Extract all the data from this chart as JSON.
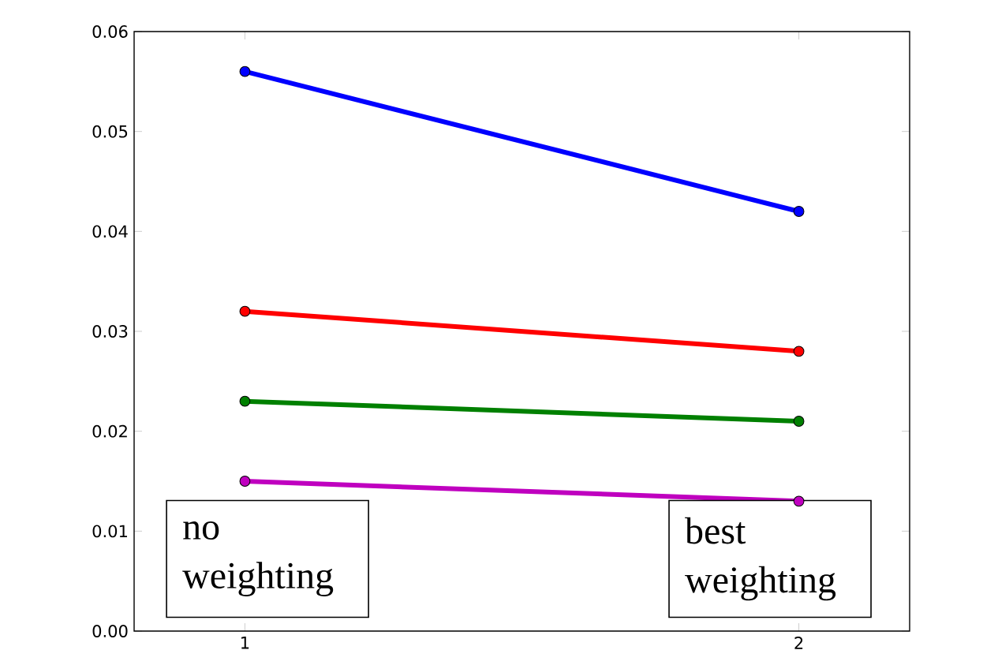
{
  "chart_data": {
    "type": "line",
    "x": [
      1,
      2
    ],
    "xlim": [
      0.8,
      2.2
    ],
    "xticks": [
      1,
      2
    ],
    "ylim": [
      0,
      0.06
    ],
    "yticks": [
      {
        "value": 0,
        "label": "0.00"
      },
      0.01,
      0.02,
      0.03,
      0.04,
      0.05,
      0.06
    ],
    "marker": "circle",
    "grid": false,
    "series": [
      {
        "color": "#0000ff",
        "values": [
          0.056,
          0.042
        ]
      },
      {
        "color": "#ff0000",
        "values": [
          0.032,
          0.028
        ]
      },
      {
        "color": "#008000",
        "values": [
          0.023,
          0.021
        ]
      },
      {
        "color": "#bf00bf",
        "values": [
          0.015,
          0.013
        ]
      }
    ],
    "annotations": [
      "no weighting",
      "best weighting"
    ]
  }
}
